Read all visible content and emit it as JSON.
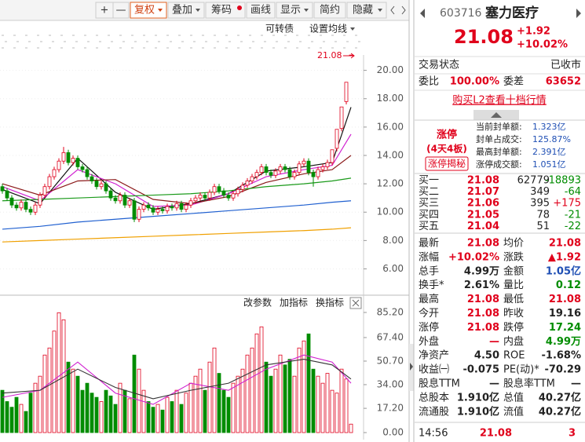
{
  "toolbar": {
    "buttons": [
      "+",
      "—",
      "复权",
      "叠加",
      "筹码",
      "画线",
      "显示",
      "简约",
      "隐藏"
    ]
  },
  "chart_tools": [
    "可转债",
    "设置均线"
  ],
  "kline": {
    "type": "candlestick",
    "last_price_label": "21.08",
    "up_color": "#e0001b",
    "down_color": "#008c00",
    "ylim": [
      4.2,
      23.3
    ],
    "yticks": [
      {
        "value": 20,
        "label": "20.00"
      },
      {
        "value": 18,
        "label": "18.00"
      },
      {
        "value": 16,
        "label": "16.00"
      },
      {
        "value": 14,
        "label": "14.00"
      },
      {
        "value": 12,
        "label": "12.00"
      },
      {
        "value": 10,
        "label": "10.00"
      },
      {
        "value": 8,
        "label": "8.00"
      },
      {
        "value": 6,
        "label": "6.00"
      }
    ],
    "candles": [
      [
        11.8,
        12.0,
        11.3,
        11.5
      ],
      [
        11.5,
        11.7,
        10.8,
        11.0
      ],
      [
        11.0,
        11.2,
        10.3,
        10.5
      ],
      [
        10.5,
        10.7,
        10.1,
        10.3
      ],
      [
        10.3,
        10.9,
        10.1,
        10.7
      ],
      [
        10.7,
        10.9,
        10.0,
        10.2
      ],
      [
        10.2,
        10.4,
        9.8,
        10.0
      ],
      [
        10.0,
        10.7,
        9.8,
        10.5
      ],
      [
        10.5,
        11.4,
        10.3,
        11.2
      ],
      [
        11.2,
        12.0,
        11.0,
        11.8
      ],
      [
        11.8,
        12.7,
        11.6,
        12.5
      ],
      [
        12.5,
        13.2,
        12.3,
        13.0
      ],
      [
        13.0,
        13.8,
        12.8,
        13.6
      ],
      [
        13.6,
        14.6,
        13.4,
        14.2
      ],
      [
        14.2,
        14.4,
        13.3,
        13.5
      ],
      [
        13.5,
        14.0,
        13.3,
        13.8
      ],
      [
        13.8,
        14.0,
        13.0,
        13.2
      ],
      [
        13.2,
        13.4,
        12.8,
        13.0
      ],
      [
        13.0,
        13.2,
        12.3,
        12.5
      ],
      [
        12.5,
        12.7,
        12.0,
        12.2
      ],
      [
        12.2,
        12.4,
        11.6,
        11.8
      ],
      [
        11.8,
        12.2,
        11.6,
        12.0
      ],
      [
        12.0,
        12.2,
        11.3,
        11.5
      ],
      [
        11.5,
        11.7,
        10.8,
        11.0
      ],
      [
        11.0,
        11.2,
        10.6,
        10.8
      ],
      [
        10.8,
        11.4,
        10.6,
        11.2
      ],
      [
        11.2,
        11.4,
        10.3,
        10.5
      ],
      [
        10.5,
        11.0,
        10.3,
        10.8
      ],
      [
        10.8,
        11.0,
        9.3,
        9.5
      ],
      [
        9.5,
        10.4,
        9.3,
        10.2
      ],
      [
        10.2,
        10.7,
        10.0,
        10.5
      ],
      [
        10.5,
        10.7,
        10.1,
        10.3
      ],
      [
        10.3,
        10.5,
        9.8,
        10.0
      ],
      [
        10.0,
        10.4,
        9.8,
        10.2
      ],
      [
        10.2,
        10.4,
        9.9,
        10.1
      ],
      [
        10.1,
        10.6,
        9.9,
        10.4
      ],
      [
        10.4,
        10.6,
        10.1,
        10.3
      ],
      [
        10.3,
        10.8,
        10.1,
        10.6
      ],
      [
        10.6,
        10.8,
        10.0,
        10.2
      ],
      [
        10.2,
        10.7,
        10.0,
        10.5
      ],
      [
        10.5,
        11.0,
        10.3,
        10.8
      ],
      [
        10.8,
        11.2,
        10.6,
        11.0
      ],
      [
        11.0,
        11.4,
        10.8,
        11.2
      ],
      [
        11.2,
        11.4,
        10.8,
        11.0
      ],
      [
        11.0,
        11.6,
        10.8,
        11.4
      ],
      [
        11.4,
        12.0,
        11.2,
        11.8
      ],
      [
        11.8,
        12.0,
        11.3,
        11.5
      ],
      [
        11.5,
        11.7,
        11.0,
        11.2
      ],
      [
        11.2,
        11.4,
        10.8,
        11.0
      ],
      [
        11.0,
        11.5,
        10.8,
        11.3
      ],
      [
        11.3,
        11.8,
        11.1,
        11.6
      ],
      [
        11.6,
        12.1,
        11.4,
        11.9
      ],
      [
        11.9,
        12.4,
        11.7,
        12.2
      ],
      [
        12.2,
        12.7,
        12.0,
        12.5
      ],
      [
        12.5,
        13.0,
        12.3,
        12.8
      ],
      [
        12.8,
        13.4,
        12.6,
        13.2
      ],
      [
        13.2,
        13.4,
        12.6,
        12.8
      ],
      [
        12.8,
        13.0,
        12.4,
        12.6
      ],
      [
        12.6,
        13.1,
        12.4,
        12.9
      ],
      [
        12.9,
        13.4,
        12.7,
        13.2
      ],
      [
        13.2,
        13.4,
        12.8,
        13.0
      ],
      [
        13.0,
        13.2,
        12.3,
        12.5
      ],
      [
        12.5,
        13.0,
        12.3,
        12.8
      ],
      [
        12.8,
        13.6,
        12.6,
        13.4
      ],
      [
        13.4,
        13.8,
        13.2,
        13.6
      ],
      [
        13.6,
        13.8,
        12.6,
        12.8
      ],
      [
        12.8,
        13.0,
        11.8,
        12.5
      ],
      [
        12.5,
        13.2,
        12.3,
        13.0
      ],
      [
        13.0,
        13.4,
        12.8,
        13.2
      ],
      [
        13.2,
        13.7,
        13.0,
        13.5
      ],
      [
        13.5,
        14.4,
        13.3,
        14.4
      ],
      [
        14.5,
        15.84,
        14.3,
        15.84
      ],
      [
        15.9,
        17.42,
        15.7,
        17.42
      ],
      [
        17.8,
        19.16,
        17.6,
        19.16
      ],
      [
        21.08,
        21.08,
        21.08,
        21.08
      ]
    ],
    "ma": [
      {
        "color": "#111111",
        "x": [
          0,
          8,
          16,
          24,
          32,
          40,
          48,
          56,
          64,
          70,
          74
        ],
        "values": [
          11.6,
          10.6,
          13.8,
          11.4,
          10.2,
          10.6,
          11.3,
          12.9,
          13.2,
          13.5,
          17.4
        ]
      },
      {
        "color": "#d020d0",
        "x": [
          0,
          8,
          16,
          24,
          32,
          40,
          48,
          56,
          64,
          70,
          74
        ],
        "values": [
          11.8,
          10.8,
          13.0,
          12.0,
          10.4,
          10.5,
          11.3,
          12.5,
          13.0,
          13.3,
          15.5
        ]
      },
      {
        "color": "#8b1a1a",
        "x": [
          0,
          8,
          16,
          24,
          32,
          40,
          48,
          56,
          64,
          70,
          74
        ],
        "values": [
          12.0,
          11.2,
          12.2,
          12.3,
          10.9,
          10.6,
          11.1,
          12.1,
          12.7,
          13.0,
          14.0
        ]
      },
      {
        "color": "#1a9a1a",
        "x": [
          0,
          8,
          16,
          24,
          32,
          40,
          48,
          56,
          64,
          70,
          74
        ],
        "values": [
          10.8,
          10.9,
          11.0,
          11.1,
          11.2,
          11.3,
          11.5,
          11.8,
          12.0,
          12.2,
          12.4
        ]
      },
      {
        "color": "#2060d0",
        "x": [
          0,
          8,
          16,
          24,
          32,
          40,
          48,
          56,
          64,
          70,
          74
        ],
        "values": [
          8.8,
          9.0,
          9.3,
          9.5,
          9.7,
          9.9,
          10.1,
          10.3,
          10.5,
          10.7,
          10.8
        ]
      },
      {
        "color": "#f0a000",
        "x": [
          0,
          8,
          16,
          24,
          32,
          40,
          48,
          56,
          64,
          70,
          74
        ],
        "values": [
          7.9,
          8.0,
          8.1,
          8.2,
          8.3,
          8.4,
          8.5,
          8.6,
          8.7,
          8.8,
          8.9
        ]
      }
    ]
  },
  "volume": {
    "type": "bar",
    "ylim": [
      0,
      85.2
    ],
    "yticks": [
      {
        "value": 85.2,
        "label": "85.20"
      },
      {
        "value": 67.4,
        "label": "67.40"
      },
      {
        "value": 50.7,
        "label": "50.70"
      },
      {
        "value": 34,
        "label": "34.00"
      },
      {
        "value": 17.2,
        "label": "17.20"
      },
      {
        "value": 0,
        "label": "0.00"
      }
    ],
    "values": [
      30,
      22,
      18,
      25,
      20,
      15,
      28,
      35,
      40,
      55,
      60,
      72,
      85,
      80,
      50,
      45,
      40,
      30,
      35,
      28,
      25,
      22,
      30,
      26,
      20,
      35,
      30,
      24,
      55,
      45,
      30,
      22,
      18,
      20,
      16,
      25,
      22,
      30,
      20,
      28,
      35,
      40,
      45,
      30,
      50,
      60,
      42,
      30,
      25,
      35,
      40,
      45,
      55,
      60,
      70,
      75,
      50,
      40,
      45,
      55,
      48,
      52,
      40,
      60,
      65,
      70,
      45,
      40,
      35,
      42,
      30,
      28,
      45,
      38,
      6
    ],
    "ma": [
      {
        "color": "#d020d0",
        "x": [
          0,
          8,
          16,
          24,
          32,
          40,
          48,
          56,
          64,
          70,
          74
        ],
        "values": [
          25,
          30,
          50,
          28,
          20,
          35,
          30,
          45,
          55,
          50,
          35
        ]
      },
      {
        "color": "#333333",
        "x": [
          0,
          8,
          16,
          24,
          32,
          40,
          48,
          56,
          64,
          70,
          74
        ],
        "values": [
          28,
          30,
          45,
          32,
          24,
          30,
          35,
          48,
          52,
          48,
          38
        ]
      }
    ]
  },
  "indicator_tools": [
    "改参数",
    "加指标",
    "换指标"
  ],
  "quote": {
    "code": "603716",
    "name": "塞力医疗",
    "price": "21.08",
    "change": "+1.92",
    "change_pct": "+10.02%",
    "status": [
      "交易状态",
      "已收市"
    ],
    "weibi": [
      "委比",
      "100.00%",
      "委差",
      "63652"
    ],
    "l2_link": "购买L2查看十档行情",
    "limit_up": {
      "tag": "涨停",
      "streak": "(4天4板)",
      "button": "涨停揭秘",
      "rows": [
        [
          "当前封单额:",
          "1.323亿"
        ],
        [
          "封单占成交:",
          "125.87%"
        ],
        [
          "最高封单额:",
          "2.391亿"
        ],
        [
          "涨停成交额:",
          "1.051亿"
        ]
      ]
    },
    "book": [
      [
        "买一",
        "21.08",
        "62779",
        "-18893"
      ],
      [
        "买二",
        "21.07",
        "349",
        "-64"
      ],
      [
        "买三",
        "21.06",
        "395",
        "+175"
      ],
      [
        "买四",
        "21.05",
        "78",
        "-21"
      ],
      [
        "买五",
        "21.04",
        "51",
        "-22"
      ]
    ],
    "stats": [
      [
        "最新",
        "21.08",
        "均价",
        "21.08"
      ],
      [
        "涨幅",
        "+10.02%",
        "涨跌",
        "▲1.92"
      ],
      [
        "总手",
        "4.99万",
        "金额",
        "1.05亿"
      ],
      [
        "换手*",
        "2.61%",
        "量比",
        "0.12"
      ],
      [
        "最高",
        "21.08",
        "最低",
        "21.08"
      ],
      [
        "今开",
        "21.08",
        "昨收",
        "19.16"
      ],
      [
        "涨停",
        "21.08",
        "跌停",
        "17.24"
      ],
      [
        "外盘",
        "—",
        "内盘",
        "4.99万"
      ],
      [
        "净资产",
        "4.50",
        "ROE",
        "-1.68%"
      ],
      [
        "收益㈠",
        "-0.075",
        "PE(动)*",
        "-70.29"
      ],
      [
        "股息TTM",
        "—",
        "股息率TTM",
        "—"
      ],
      [
        "总股本",
        "1.910亿",
        "总值",
        "40.27亿"
      ],
      [
        "流通股",
        "1.910亿",
        "流值",
        "40.27亿"
      ]
    ],
    "footer": [
      "14:56",
      "21.08",
      "3"
    ]
  }
}
